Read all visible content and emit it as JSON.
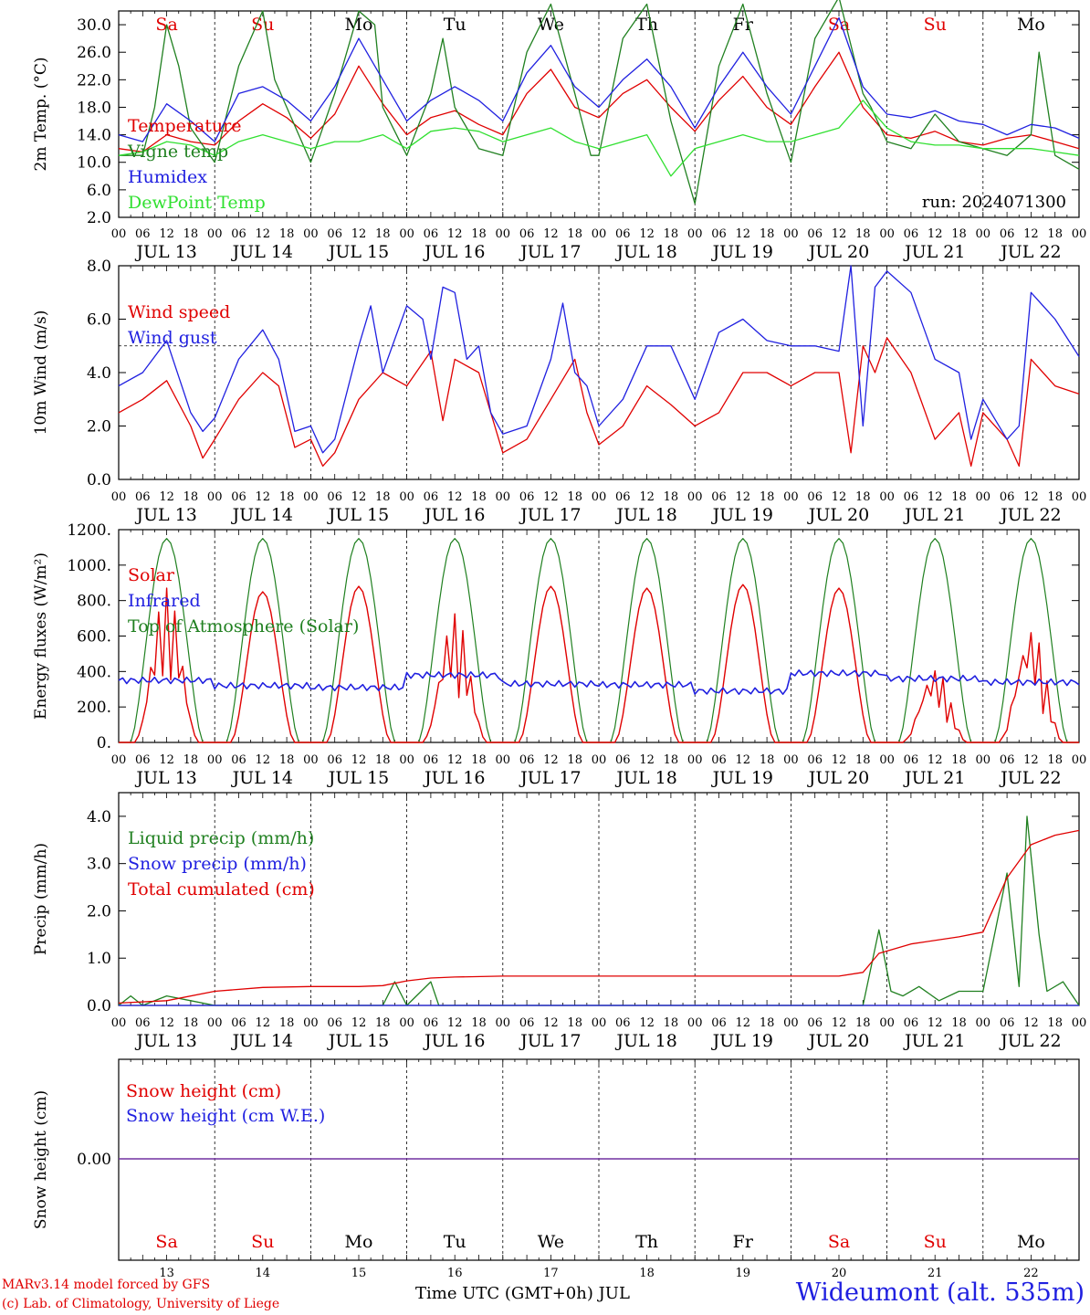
{
  "run_label": "run: 2024071300",
  "day_abbrev": [
    "Sa",
    "Su",
    "Mo",
    "Tu",
    "We",
    "Th",
    "Fr",
    "Sa",
    "Su",
    "Mo"
  ],
  "day_colors": [
    "#e00000",
    "#e00000",
    "#000000",
    "#000000",
    "#000000",
    "#000000",
    "#000000",
    "#e00000",
    "#e00000",
    "#000000"
  ],
  "date_labels": [
    "JUL 13",
    "JUL 14",
    "JUL 15",
    "JUL 16",
    "JUL 17",
    "JUL 18",
    "JUL 19",
    "JUL 20",
    "JUL 21",
    "JUL 22"
  ],
  "hour_ticks": [
    "00",
    "06",
    "12",
    "18"
  ],
  "bottom_day_numbers": [
    "13",
    "14",
    "15",
    "16",
    "17",
    "18",
    "19",
    "20",
    "21",
    "22"
  ],
  "footer": {
    "credit_line1": "MARv3.14 model forced by GFS",
    "credit_line2": "(c) Lab. of Climatology, University of Liege",
    "x_title": "Time UTC (GMT+0h) JUL",
    "station": "Wideumont (alt. 535m)"
  },
  "colors": {
    "red": "#e00000",
    "green": "#208020",
    "blue": "#2020e0",
    "lightgreen": "#30e030",
    "purple": "#7030a0"
  },
  "chart_data": [
    {
      "type": "line",
      "id": "temperature",
      "ylabel": "2m Temp. (°C)",
      "ylim": [
        2.0,
        32.0
      ],
      "yticks": [
        "2.0",
        "6.0",
        "10.0",
        "14.0",
        "18.0",
        "22.0",
        "26.0",
        "30.0"
      ],
      "x_unit": "hours since 2024-07-13 00 UTC",
      "xlim": [
        0,
        240
      ],
      "series": [
        {
          "name": "Temperature",
          "color": "#e00000",
          "x": [
            0,
            6,
            12,
            18,
            24,
            30,
            36,
            42,
            48,
            54,
            60,
            66,
            72,
            78,
            84,
            90,
            96,
            102,
            108,
            114,
            120,
            126,
            132,
            138,
            144,
            150,
            156,
            162,
            168,
            174,
            180,
            186,
            192,
            198,
            204,
            210,
            216,
            222,
            228,
            234,
            240
          ],
          "y": [
            12,
            11.5,
            14,
            13,
            12.5,
            16,
            18.5,
            16.5,
            13.5,
            17,
            24,
            18.5,
            14,
            16.5,
            17.5,
            15.5,
            14,
            20,
            23.5,
            18,
            16.5,
            20,
            22,
            18,
            14.5,
            19,
            22.5,
            18,
            15.5,
            21,
            26,
            18,
            14,
            13.5,
            14.5,
            13,
            12.5,
            13.5,
            14,
            13,
            12
          ]
        },
        {
          "name": "Vigne temp",
          "color": "#208020",
          "x": [
            0,
            6,
            9,
            12,
            15,
            18,
            24,
            30,
            36,
            39,
            42,
            48,
            54,
            60,
            64,
            66,
            72,
            78,
            81,
            84,
            90,
            96,
            102,
            108,
            114,
            118,
            120,
            126,
            132,
            138,
            144,
            150,
            156,
            162,
            168,
            174,
            180,
            186,
            188,
            192,
            198,
            204,
            210,
            216,
            222,
            228,
            230,
            234,
            240
          ],
          "y": [
            11,
            11,
            18,
            30,
            24,
            15,
            10,
            24,
            32,
            22,
            18,
            10,
            20,
            32,
            30,
            18,
            11,
            20,
            28,
            18,
            12,
            11,
            26,
            33,
            20,
            11,
            11,
            28,
            33,
            16,
            4,
            24,
            33,
            20,
            10,
            28,
            34,
            20,
            18,
            13,
            12,
            17,
            13,
            12,
            11,
            14,
            26,
            11,
            9
          ]
        },
        {
          "name": "Humidex",
          "color": "#2020e0",
          "x": [
            0,
            6,
            12,
            18,
            24,
            30,
            36,
            42,
            48,
            54,
            60,
            66,
            72,
            78,
            84,
            90,
            96,
            102,
            108,
            114,
            120,
            126,
            132,
            138,
            144,
            150,
            156,
            162,
            168,
            174,
            180,
            186,
            192,
            198,
            204,
            210,
            216,
            222,
            228,
            234,
            240
          ],
          "y": [
            14,
            13,
            18.5,
            16,
            13,
            20,
            21,
            19,
            16,
            21,
            28,
            22,
            16,
            19,
            21,
            19,
            16,
            23,
            27,
            21,
            18,
            22,
            25,
            21,
            15,
            21,
            26,
            21,
            17,
            24,
            31,
            21,
            17,
            16.5,
            17.5,
            16,
            15.5,
            14,
            15.5,
            15,
            13.5
          ]
        },
        {
          "name": "DewPoint Temp",
          "color": "#30e030",
          "x": [
            0,
            6,
            12,
            18,
            24,
            30,
            36,
            42,
            48,
            54,
            60,
            66,
            72,
            78,
            84,
            90,
            96,
            102,
            108,
            114,
            120,
            126,
            132,
            138,
            144,
            150,
            156,
            162,
            168,
            174,
            180,
            186,
            192,
            198,
            204,
            210,
            216,
            222,
            228,
            234,
            240
          ],
          "y": [
            11,
            11.5,
            13,
            12.5,
            11,
            13,
            14,
            13,
            12,
            13,
            13,
            14,
            12,
            14.5,
            15,
            14.5,
            13,
            14,
            15,
            13,
            12,
            13,
            14,
            8,
            12,
            13,
            14,
            13,
            13,
            14,
            15,
            19,
            15,
            13,
            12.5,
            12.5,
            12,
            12,
            12,
            11.5,
            11
          ]
        }
      ]
    },
    {
      "type": "line",
      "id": "wind",
      "ylabel": "10m Wind (m/s)",
      "ylim": [
        0.0,
        8.0
      ],
      "yticks": [
        "0.0",
        "2.0",
        "4.0",
        "6.0",
        "8.0"
      ],
      "reference_line": 5.0,
      "x_unit": "hours since 2024-07-13 00 UTC",
      "xlim": [
        0,
        240
      ],
      "series": [
        {
          "name": "Wind speed",
          "color": "#e00000",
          "x": [
            0,
            6,
            12,
            18,
            21,
            24,
            30,
            36,
            40,
            44,
            48,
            51,
            54,
            60,
            66,
            72,
            78,
            81,
            84,
            90,
            93,
            96,
            102,
            108,
            114,
            117,
            120,
            126,
            132,
            138,
            144,
            150,
            156,
            162,
            168,
            174,
            180,
            183,
            186,
            189,
            192,
            198,
            204,
            210,
            213,
            216,
            222,
            225,
            228,
            234,
            240
          ],
          "y": [
            2.5,
            3,
            3.7,
            2,
            0.8,
            1.5,
            3,
            4,
            3.5,
            1.2,
            1.5,
            0.5,
            1,
            3,
            4,
            3.5,
            4.8,
            2.2,
            4.5,
            4,
            2.5,
            1,
            1.5,
            3,
            4.5,
            2.5,
            1.3,
            2,
            3.5,
            2.8,
            2,
            2.5,
            4,
            4,
            3.5,
            4,
            4,
            1,
            5,
            4,
            5.3,
            4,
            1.5,
            2.5,
            0.5,
            2.5,
            1.5,
            0.5,
            4.5,
            3.5,
            3.2
          ]
        },
        {
          "name": "Wind gust",
          "color": "#2020e0",
          "x": [
            0,
            6,
            12,
            18,
            21,
            24,
            30,
            36,
            40,
            44,
            48,
            51,
            54,
            60,
            63,
            66,
            72,
            76,
            78,
            81,
            84,
            87,
            90,
            93,
            96,
            102,
            108,
            111,
            114,
            117,
            120,
            126,
            132,
            138,
            144,
            150,
            156,
            162,
            168,
            174,
            180,
            183,
            186,
            189,
            192,
            198,
            204,
            210,
            213,
            216,
            222,
            225,
            228,
            234,
            240
          ],
          "y": [
            3.5,
            4,
            5.2,
            2.5,
            1.8,
            2.3,
            4.5,
            5.6,
            4.5,
            1.8,
            2,
            1,
            1.5,
            5,
            6.5,
            4,
            6.5,
            6,
            4.5,
            7.2,
            7,
            4.5,
            5,
            2.5,
            1.7,
            2,
            4.5,
            6.6,
            4,
            3.5,
            2,
            3,
            5,
            5,
            3,
            5.5,
            6,
            5.2,
            5,
            5,
            4.8,
            8,
            2,
            7.2,
            7.8,
            7,
            4.5,
            4,
            1.5,
            3,
            1.5,
            2,
            7,
            6,
            4.6
          ]
        }
      ]
    },
    {
      "type": "line",
      "id": "energy",
      "ylabel": "Energy fluxes (W/m²)",
      "ylim": [
        0,
        1200
      ],
      "yticks": [
        "0.",
        "200.",
        "400.",
        "600.",
        "800.",
        "1000.",
        "1200."
      ],
      "x_unit": "hours since 2024-07-13 00 UTC",
      "xlim": [
        0,
        240
      ],
      "solar_peaks": [
        870,
        850,
        880,
        730,
        880,
        870,
        890,
        870,
        420,
        650
      ],
      "infrared_level": [
        350,
        320,
        310,
        380,
        330,
        325,
        290,
        390,
        360,
        340
      ],
      "toa_peak": 1150,
      "series": [
        {
          "name": "Solar",
          "color": "#e00000"
        },
        {
          "name": "Infrared",
          "color": "#2020e0"
        },
        {
          "name": "Top of Atmosphere (Solar)",
          "color": "#208020"
        }
      ]
    },
    {
      "type": "line",
      "id": "precip",
      "ylabel": "Precip (mm/h)",
      "ylim": [
        0.0,
        4.5
      ],
      "yticks": [
        "0.0",
        "1.0",
        "2.0",
        "3.0",
        "4.0"
      ],
      "x_unit": "hours since 2024-07-13 00 UTC",
      "xlim": [
        0,
        240
      ],
      "series": [
        {
          "name": "Liquid precip (mm/h)",
          "color": "#208020",
          "x": [
            0,
            3,
            6,
            12,
            18,
            24,
            48,
            66,
            69,
            72,
            78,
            80,
            84,
            96,
            186,
            190,
            193,
            196,
            200,
            205,
            210,
            216,
            222,
            225,
            227,
            230,
            232,
            236,
            240
          ],
          "y": [
            0,
            0.2,
            0,
            0.2,
            0.1,
            0,
            0,
            0,
            0.5,
            0,
            0.5,
            0,
            0,
            0,
            0,
            1.6,
            0.3,
            0.2,
            0.4,
            0.1,
            0.3,
            0.3,
            2.8,
            0.4,
            4,
            1.5,
            0.3,
            0.5,
            0
          ]
        },
        {
          "name": "Snow precip (mm/h)",
          "color": "#2020e0",
          "x": [
            0,
            240
          ],
          "y": [
            0,
            0
          ]
        },
        {
          "name": "Total cumulated (cm)",
          "color": "#e00000",
          "x": [
            0,
            12,
            24,
            36,
            48,
            60,
            66,
            72,
            78,
            84,
            96,
            120,
            144,
            168,
            180,
            186,
            190,
            198,
            210,
            216,
            222,
            228,
            234,
            240
          ],
          "y": [
            0.05,
            0.1,
            0.3,
            0.38,
            0.4,
            0.4,
            0.42,
            0.52,
            0.58,
            0.6,
            0.62,
            0.62,
            0.62,
            0.62,
            0.62,
            0.7,
            1.1,
            1.3,
            1.45,
            1.55,
            2.7,
            3.4,
            3.6,
            3.7
          ]
        }
      ]
    },
    {
      "type": "line",
      "id": "snow",
      "ylabel": "Snow height (cm)",
      "ytick": "0.00",
      "x_unit": "hours since 2024-07-13 00 UTC",
      "xlim": [
        0,
        240
      ],
      "series": [
        {
          "name": "Snow height (cm)",
          "color": "#e00000",
          "x": [
            0,
            240
          ],
          "y": [
            0,
            0
          ]
        },
        {
          "name": "Snow height (cm W.E.)",
          "color": "#2020e0",
          "x": [
            0,
            240
          ],
          "y": [
            0,
            0
          ]
        }
      ]
    }
  ]
}
